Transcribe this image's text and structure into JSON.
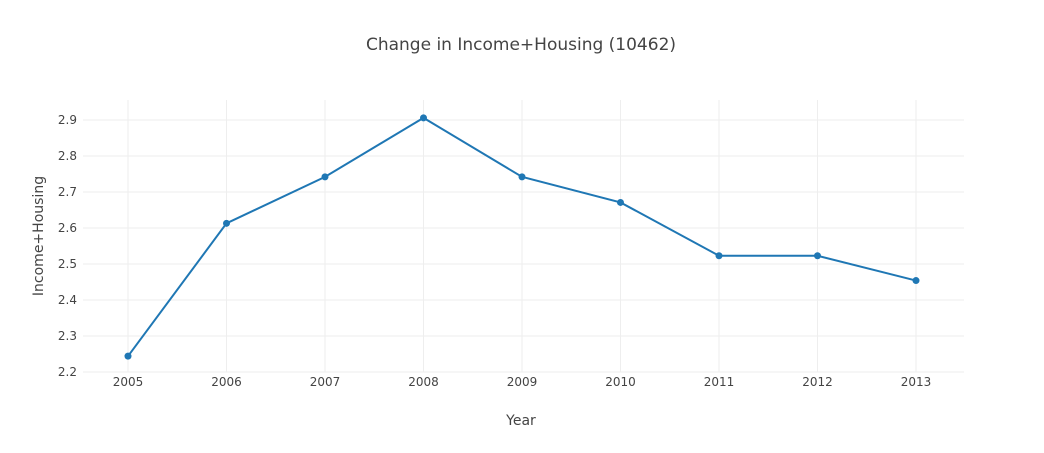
{
  "chart_data": {
    "type": "line",
    "title": "Change in Income+Housing (10462)",
    "xlabel": "Year",
    "ylabel": "Income+Housing",
    "x": [
      2005,
      2006,
      2007,
      2008,
      2009,
      2010,
      2011,
      2012,
      2013
    ],
    "x_tick_labels": [
      "2005",
      "2006",
      "2007",
      "2008",
      "2009",
      "2010",
      "2011",
      "2012",
      "2013"
    ],
    "series": [
      {
        "color": "#1f77b4",
        "values": [
          2.244,
          2.613,
          2.742,
          2.906,
          2.742,
          2.671,
          2.523,
          2.523,
          2.454
        ]
      }
    ],
    "ylim": [
      2.2,
      2.95
    ],
    "y_ticks": [
      2.2,
      2.3,
      2.4,
      2.5,
      2.6,
      2.7,
      2.8,
      2.9
    ],
    "y_tick_labels": [
      "2.2",
      "2.3",
      "2.4",
      "2.5",
      "2.6",
      "2.7",
      "2.8",
      "2.9"
    ],
    "grid": true,
    "legend": "none"
  }
}
